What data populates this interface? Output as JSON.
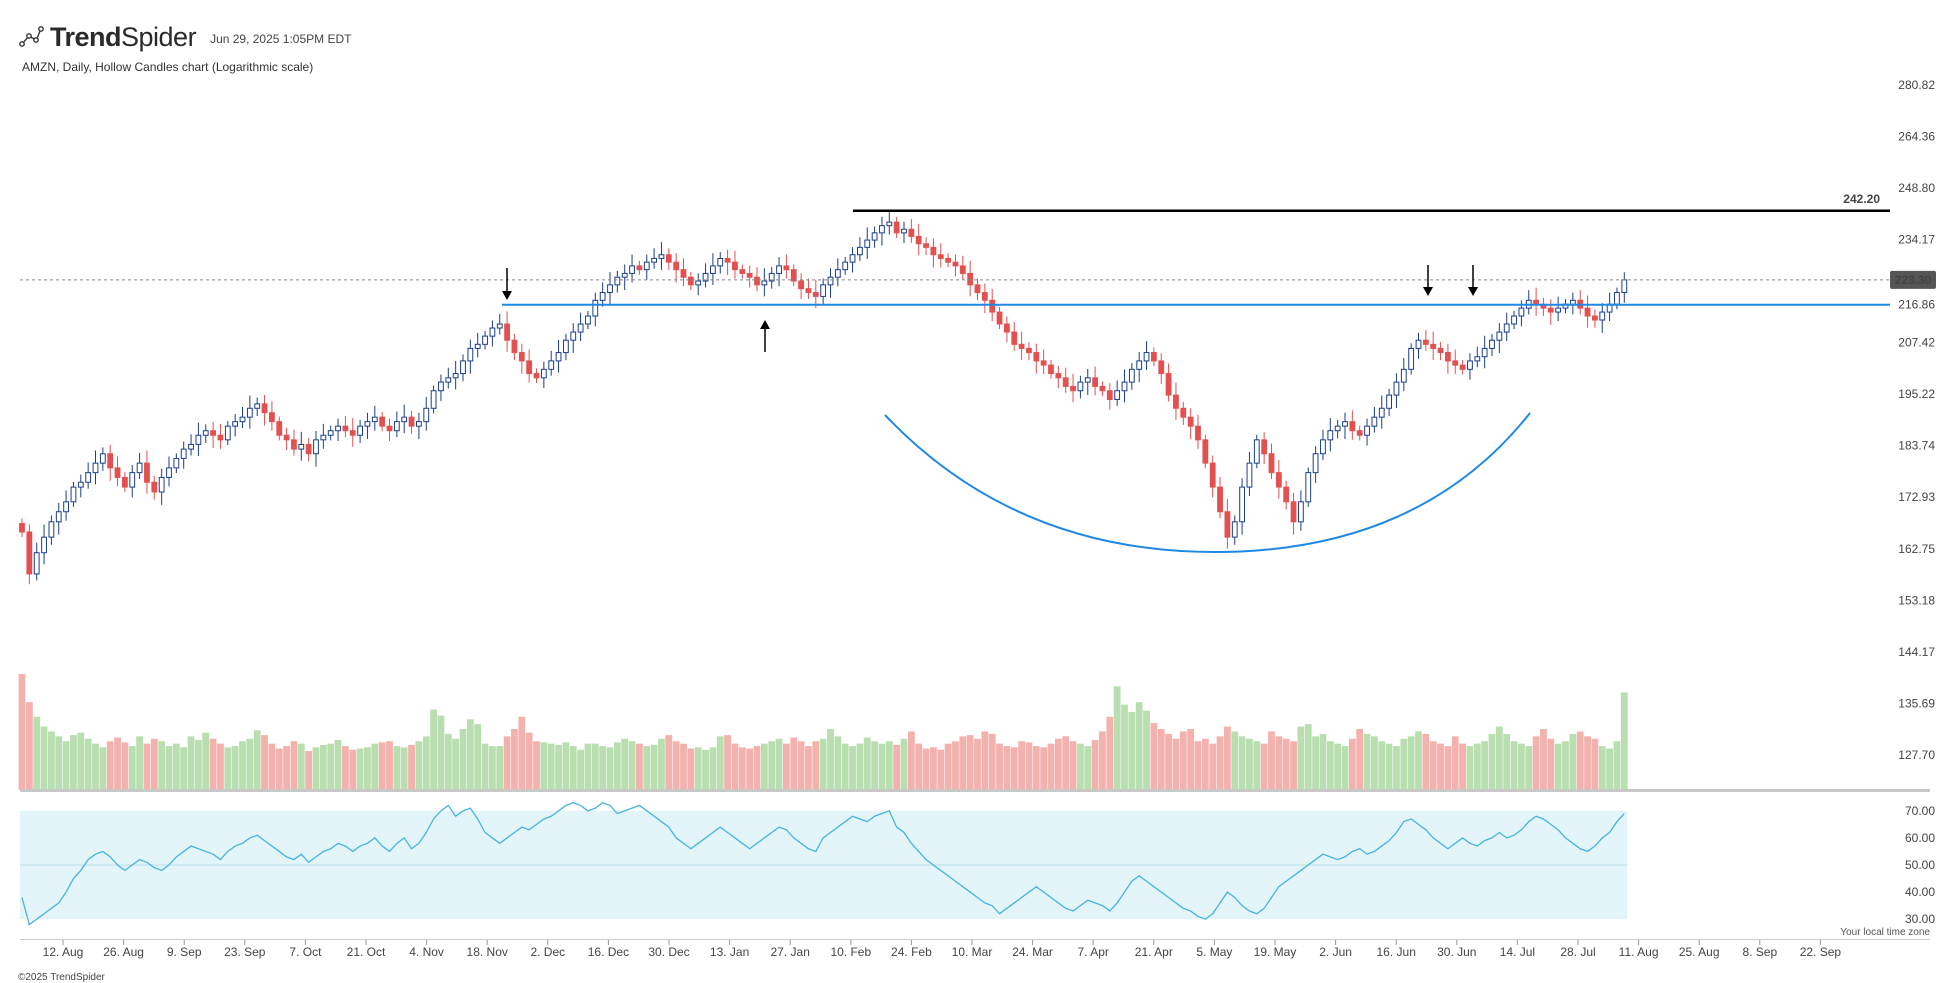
{
  "brand": {
    "name_bold": "Trend",
    "name_light": "Spider",
    "logo_icon": "trendspider-logo-icon"
  },
  "timestamp": "Jun 29, 2025 1:05PM EDT",
  "subtitle": "AMZN, Daily, Hollow Candles chart (Logarithmic scale)",
  "footer": "©2025 TrendSpider",
  "timezone_note": "Your local time zone",
  "colors": {
    "up": "#1a3f8a",
    "down": "#e35050",
    "vol_up": "#b9dfb1",
    "vol_down": "#f4b2ae",
    "resistance_line": "#000000",
    "neckline": "#1e88e5",
    "cup_curve": "#1e88e5",
    "rsi_line": "#47b4e0",
    "rsi_band": "#e3f5f9",
    "price_tag_bg": "#555555"
  },
  "chart_data": [
    {
      "type": "candlestick",
      "title": "AMZN, Daily, Hollow Candles chart (Logarithmic scale)",
      "scale": "log",
      "y_ticks": [
        280.82,
        264.36,
        248.8,
        234.17,
        223.3,
        216.86,
        207.42,
        195.22,
        183.74,
        172.93,
        162.75,
        153.18,
        144.17,
        135.69,
        127.7
      ],
      "x_ticks": [
        "12. Aug",
        "26. Aug",
        "9. Sep",
        "23. Sep",
        "7. Oct",
        "21. Oct",
        "4. Nov",
        "18. Nov",
        "2. Dec",
        "16. Dec",
        "30. Dec",
        "13. Jan",
        "27. Jan",
        "10. Feb",
        "24. Feb",
        "10. Mar",
        "24. Mar",
        "7. Apr",
        "21. Apr",
        "5. May",
        "19. May",
        "2. Jun",
        "16. Jun",
        "30. Jun",
        "14. Jul",
        "28. Jul",
        "11. Aug",
        "25. Aug",
        "8. Sep",
        "22. Sep"
      ],
      "closes": [
        166,
        158,
        162,
        165,
        168,
        170,
        172,
        175,
        176,
        178,
        180,
        182,
        179,
        177,
        175,
        178,
        180,
        176,
        174,
        177,
        179,
        181,
        183,
        184,
        186,
        187,
        186,
        185,
        188,
        189,
        190,
        192,
        193,
        191,
        189,
        186,
        185,
        183,
        184,
        182,
        185,
        186,
        187,
        188,
        187,
        186,
        188,
        189,
        190,
        188,
        187,
        189,
        190,
        188,
        189,
        192,
        196,
        198,
        199,
        200,
        203,
        206,
        207,
        209,
        211,
        212,
        208,
        205,
        203,
        200,
        199,
        201,
        203,
        205,
        208,
        210,
        212,
        214,
        218,
        220,
        222,
        224,
        225,
        227,
        226,
        228,
        229,
        230,
        228,
        226,
        224,
        222,
        223,
        225,
        227,
        229,
        228,
        226,
        225,
        224,
        222,
        223,
        225,
        227,
        226,
        223,
        221,
        220,
        219,
        222,
        224,
        226,
        228,
        230,
        232,
        234,
        236,
        238,
        239,
        236,
        237,
        235,
        233,
        232,
        230,
        229,
        228,
        227,
        225,
        222,
        220,
        218,
        215,
        212,
        210,
        207,
        206,
        205,
        203,
        202,
        200,
        199,
        197,
        196,
        198,
        199,
        197,
        196,
        194,
        196,
        198,
        201,
        203,
        205,
        203,
        200,
        195,
        192,
        190,
        188,
        185,
        180,
        175,
        170,
        165,
        168,
        175,
        180,
        185,
        182,
        178,
        175,
        172,
        168,
        172,
        178,
        182,
        185,
        187,
        188,
        189,
        187,
        186,
        188,
        190,
        192,
        195,
        198,
        201,
        206,
        208,
        207,
        206,
        205,
        203,
        202,
        201,
        203,
        204,
        206,
        208,
        210,
        212,
        214,
        216,
        218,
        217,
        216,
        215,
        216,
        217,
        218,
        216,
        214,
        213,
        215,
        217,
        220,
        223.3
      ],
      "resistance_level": 242.2,
      "neckline_level": 216.86,
      "last_price": 223.3,
      "annotations": [
        "down-arrow Nov",
        "up-arrow Jan",
        "down-arrow Jun",
        "down-arrow Jun",
        "cup-curve Feb-Jun"
      ]
    },
    {
      "type": "bar",
      "series_role": "volume",
      "values": [
        95,
        72,
        60,
        52,
        48,
        44,
        40,
        45,
        47,
        42,
        38,
        35,
        40,
        43,
        39,
        36,
        44,
        38,
        42,
        40,
        36,
        38,
        35,
        44,
        41,
        47,
        42,
        38,
        35,
        36,
        40,
        42,
        49,
        45,
        38,
        34,
        36,
        40,
        38,
        32,
        35,
        37,
        38,
        41,
        36,
        33,
        34,
        35,
        38,
        39,
        40,
        36,
        35,
        37,
        40,
        44,
        66,
        61,
        46,
        42,
        50,
        58,
        54,
        38,
        36,
        36,
        44,
        50,
        60,
        47,
        40,
        39,
        38,
        37,
        39,
        36,
        33,
        38,
        38,
        36,
        35,
        39,
        42,
        40,
        38,
        36,
        37,
        42,
        45,
        40,
        38,
        34,
        35,
        33,
        35,
        44,
        45,
        38,
        35,
        34,
        36,
        38,
        40,
        42,
        38,
        43,
        40,
        36,
        40,
        42,
        50,
        44,
        38,
        36,
        38,
        43,
        40,
        38,
        40,
        37,
        42,
        48,
        38,
        34,
        35,
        33,
        38,
        40,
        44,
        45,
        42,
        48,
        46,
        38,
        36,
        35,
        40,
        39,
        36,
        35,
        38,
        42,
        44,
        40,
        38,
        36,
        41,
        48,
        60,
        85,
        70,
        64,
        72,
        65,
        55,
        50,
        46,
        42,
        48,
        50,
        40,
        42,
        38,
        44,
        52,
        48,
        44,
        42,
        40,
        38,
        48,
        44,
        42,
        40,
        52,
        54,
        44,
        46,
        40,
        38,
        36,
        42,
        50,
        46,
        44,
        40,
        38,
        36,
        42,
        44,
        48,
        46,
        40,
        38,
        36,
        44,
        38,
        36,
        38,
        40,
        46,
        52,
        46,
        40,
        38,
        36,
        44,
        50,
        42,
        38,
        40,
        46,
        48,
        44,
        42,
        36,
        34,
        40,
        80
      ],
      "ylim": [
        0,
        100
      ]
    },
    {
      "type": "line",
      "series_role": "rsi",
      "y_ticks": [
        70.0,
        60.0,
        50.0,
        40.0,
        30.0
      ],
      "band": [
        30,
        70
      ],
      "midline": 50,
      "values": [
        38,
        28,
        30,
        32,
        34,
        36,
        40,
        45,
        48,
        52,
        54,
        55,
        53,
        50,
        48,
        50,
        52,
        51,
        49,
        48,
        50,
        53,
        55,
        57,
        56,
        55,
        54,
        52,
        55,
        57,
        58,
        60,
        61,
        59,
        57,
        55,
        53,
        52,
        54,
        51,
        53,
        55,
        56,
        58,
        57,
        55,
        57,
        58,
        60,
        57,
        55,
        58,
        60,
        56,
        58,
        62,
        67,
        70,
        72,
        68,
        70,
        71,
        67,
        62,
        60,
        58,
        60,
        62,
        64,
        63,
        65,
        67,
        68,
        70,
        72,
        73,
        72,
        70,
        71,
        73,
        72,
        69,
        70,
        71,
        72,
        70,
        68,
        66,
        64,
        60,
        58,
        56,
        58,
        60,
        62,
        64,
        62,
        60,
        58,
        56,
        58,
        60,
        62,
        64,
        63,
        60,
        58,
        56,
        55,
        60,
        62,
        64,
        66,
        68,
        67,
        66,
        68,
        69,
        70,
        64,
        62,
        58,
        55,
        52,
        50,
        48,
        46,
        44,
        42,
        40,
        38,
        36,
        35,
        32,
        34,
        36,
        38,
        40,
        42,
        40,
        38,
        36,
        34,
        33,
        35,
        37,
        36,
        35,
        33,
        36,
        40,
        44,
        46,
        44,
        42,
        40,
        38,
        36,
        34,
        33,
        31,
        30,
        32,
        36,
        40,
        38,
        35,
        33,
        32,
        34,
        38,
        42,
        44,
        46,
        48,
        50,
        52,
        54,
        53,
        52,
        53,
        55,
        56,
        54,
        55,
        57,
        59,
        62,
        66,
        67,
        65,
        63,
        60,
        58,
        56,
        58,
        60,
        58,
        57,
        59,
        60,
        62,
        60,
        61,
        63,
        66,
        68,
        67,
        65,
        63,
        60,
        58,
        56,
        55,
        57,
        60,
        62,
        66,
        69
      ],
      "ylim": [
        26,
        74
      ]
    }
  ]
}
